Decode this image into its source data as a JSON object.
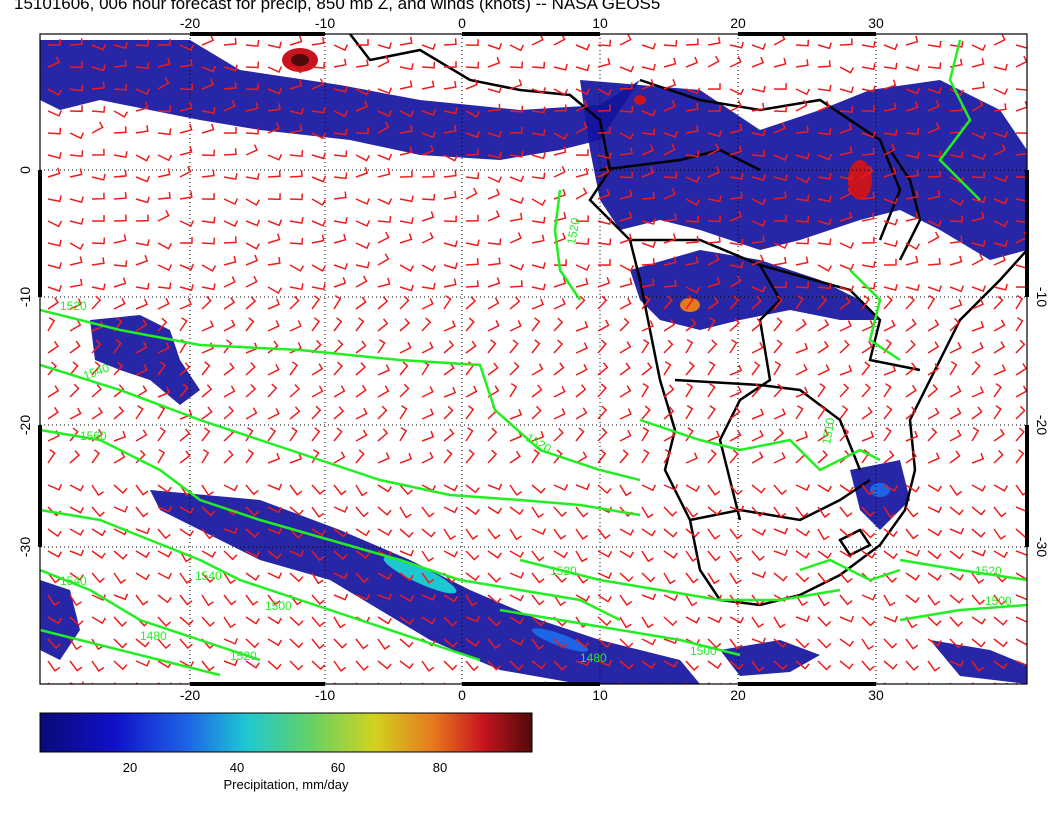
{
  "title": "15101606, 006 hour forecast for precip, 850 mb Z, and winds (knots) -- NASA GEOS5",
  "map": {
    "lon_range": [
      -30,
      40
    ],
    "lat_range": [
      -40,
      10
    ],
    "lon_ticks": [
      "-20",
      "-10",
      "0",
      "10",
      "20",
      "30"
    ],
    "lat_ticks": [
      "0",
      "-10",
      "-20",
      "-30"
    ],
    "grid": "dotted",
    "contour_color": "#22ee22",
    "wind_barb_color": "#ee1c1c",
    "coastline_color": "#000000",
    "contour_labels": [
      "1520",
      "1520",
      "1540",
      "1560",
      "1520",
      "1510",
      "1540",
      "1540",
      "1500",
      "1520",
      "1480",
      "1520",
      "1500",
      "1520",
      "1500",
      "1480"
    ]
  },
  "colorbar": {
    "label": "Precipitation, mm/day",
    "ticks": [
      "20",
      "40",
      "60",
      "80"
    ],
    "range": [
      0,
      100
    ],
    "colors": [
      "#0a0a78",
      "#1010c8",
      "#1e64e6",
      "#1ec8d2",
      "#64d264",
      "#d2d21e",
      "#e6781e",
      "#c8141e",
      "#780a0a"
    ]
  }
}
